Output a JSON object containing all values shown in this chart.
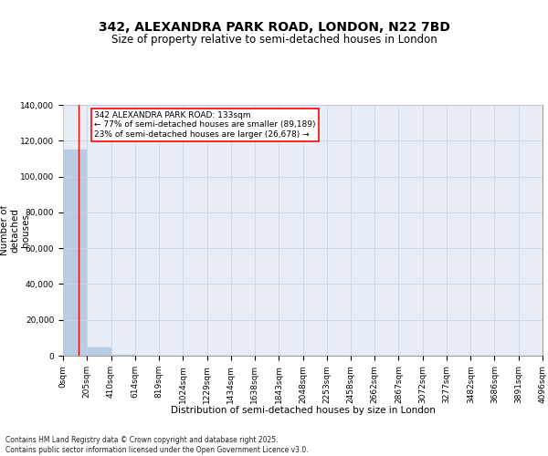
{
  "title": "342, ALEXANDRA PARK ROAD, LONDON, N22 7BD",
  "subtitle": "Size of property relative to semi-detached houses in London",
  "xlabel": "Distribution of semi-detached houses by size in London",
  "ylabel": "Number of\ndetached\nhouses",
  "property_size": 133,
  "property_label": "342 ALEXANDRA PARK ROAD: 133sqm",
  "pct_smaller": 77,
  "pct_larger": 23,
  "n_smaller": 89189,
  "n_larger": 26678,
  "bar_edges": [
    0,
    205,
    410,
    614,
    819,
    1024,
    1229,
    1434,
    1638,
    1843,
    2048,
    2253,
    2458,
    2662,
    2867,
    3072,
    3277,
    3482,
    3686,
    3891,
    4096
  ],
  "bar_heights": [
    115000,
    4800,
    700,
    250,
    120,
    70,
    40,
    25,
    18,
    12,
    9,
    7,
    5,
    4,
    3,
    3,
    2,
    2,
    1,
    1
  ],
  "bar_color": "#b8cce4",
  "red_line_x": 133,
  "background_color": "#e8edf5",
  "grid_color": "#c8d4e8",
  "ylim": [
    0,
    140000
  ],
  "yticks": [
    0,
    20000,
    40000,
    60000,
    80000,
    100000,
    120000,
    140000
  ],
  "xtick_labels": [
    "0sqm",
    "205sqm",
    "410sqm",
    "614sqm",
    "819sqm",
    "1024sqm",
    "1229sqm",
    "1434sqm",
    "1638sqm",
    "1843sqm",
    "2048sqm",
    "2253sqm",
    "2458sqm",
    "2662sqm",
    "2867sqm",
    "3072sqm",
    "3277sqm",
    "3482sqm",
    "3686sqm",
    "3891sqm",
    "4096sqm"
  ],
  "footer": "Contains HM Land Registry data © Crown copyright and database right 2025.\nContains public sector information licensed under the Open Government Licence v3.0.",
  "title_fontsize": 10,
  "subtitle_fontsize": 8.5,
  "axis_fontsize": 7.5,
  "tick_fontsize": 6.5,
  "footer_fontsize": 5.5
}
